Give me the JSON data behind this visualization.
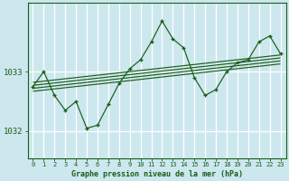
{
  "title": "Graphe pression niveau de la mer (hPa)",
  "bg_color": "#cce8ee",
  "grid_color": "#ffffff",
  "line_color": "#1a5c1a",
  "text_color": "#1a5c1a",
  "hours": [
    0,
    1,
    2,
    3,
    4,
    5,
    6,
    7,
    8,
    9,
    10,
    11,
    12,
    13,
    14,
    15,
    16,
    17,
    18,
    19,
    20,
    21,
    22,
    23
  ],
  "pressure": [
    1032.75,
    1033.0,
    1032.6,
    1032.35,
    1032.5,
    1032.05,
    1032.1,
    1032.45,
    1032.8,
    1033.05,
    1033.2,
    1033.5,
    1033.85,
    1033.55,
    1033.4,
    1032.9,
    1032.6,
    1032.7,
    1033.0,
    1033.15,
    1033.2,
    1033.5,
    1033.6,
    1033.3
  ],
  "ylim": [
    1031.55,
    1034.15
  ],
  "yticks": [
    1032,
    1033
  ],
  "trend_lines": [
    [
      1032.82,
      1033.28
    ],
    [
      1032.77,
      1033.23
    ],
    [
      1032.72,
      1033.18
    ],
    [
      1032.67,
      1033.13
    ]
  ]
}
